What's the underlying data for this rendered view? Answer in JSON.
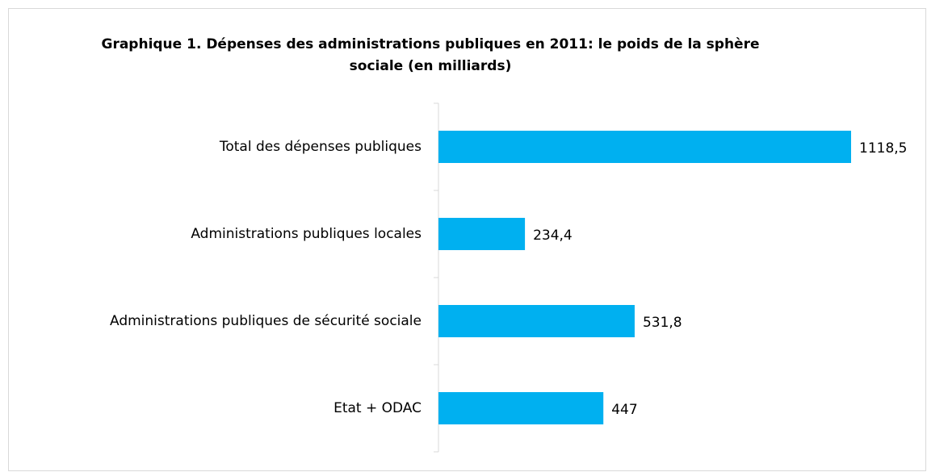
{
  "chart_data": {
    "type": "bar",
    "orientation": "horizontal",
    "title": "Graphique 1. Dépenses des administrations publiques en 2011: le poids de la sphère sociale  (en milliards)",
    "categories": [
      "Total des dépenses publiques",
      "Administrations publiques locales",
      "Administrations publiques de sécurité sociale",
      "Etat + ODAC"
    ],
    "values": [
      1118.5,
      234.4,
      531.8,
      447
    ],
    "value_labels": [
      "1118,5",
      "234,4",
      "531,8",
      "447"
    ],
    "color": "#00b0f0"
  }
}
